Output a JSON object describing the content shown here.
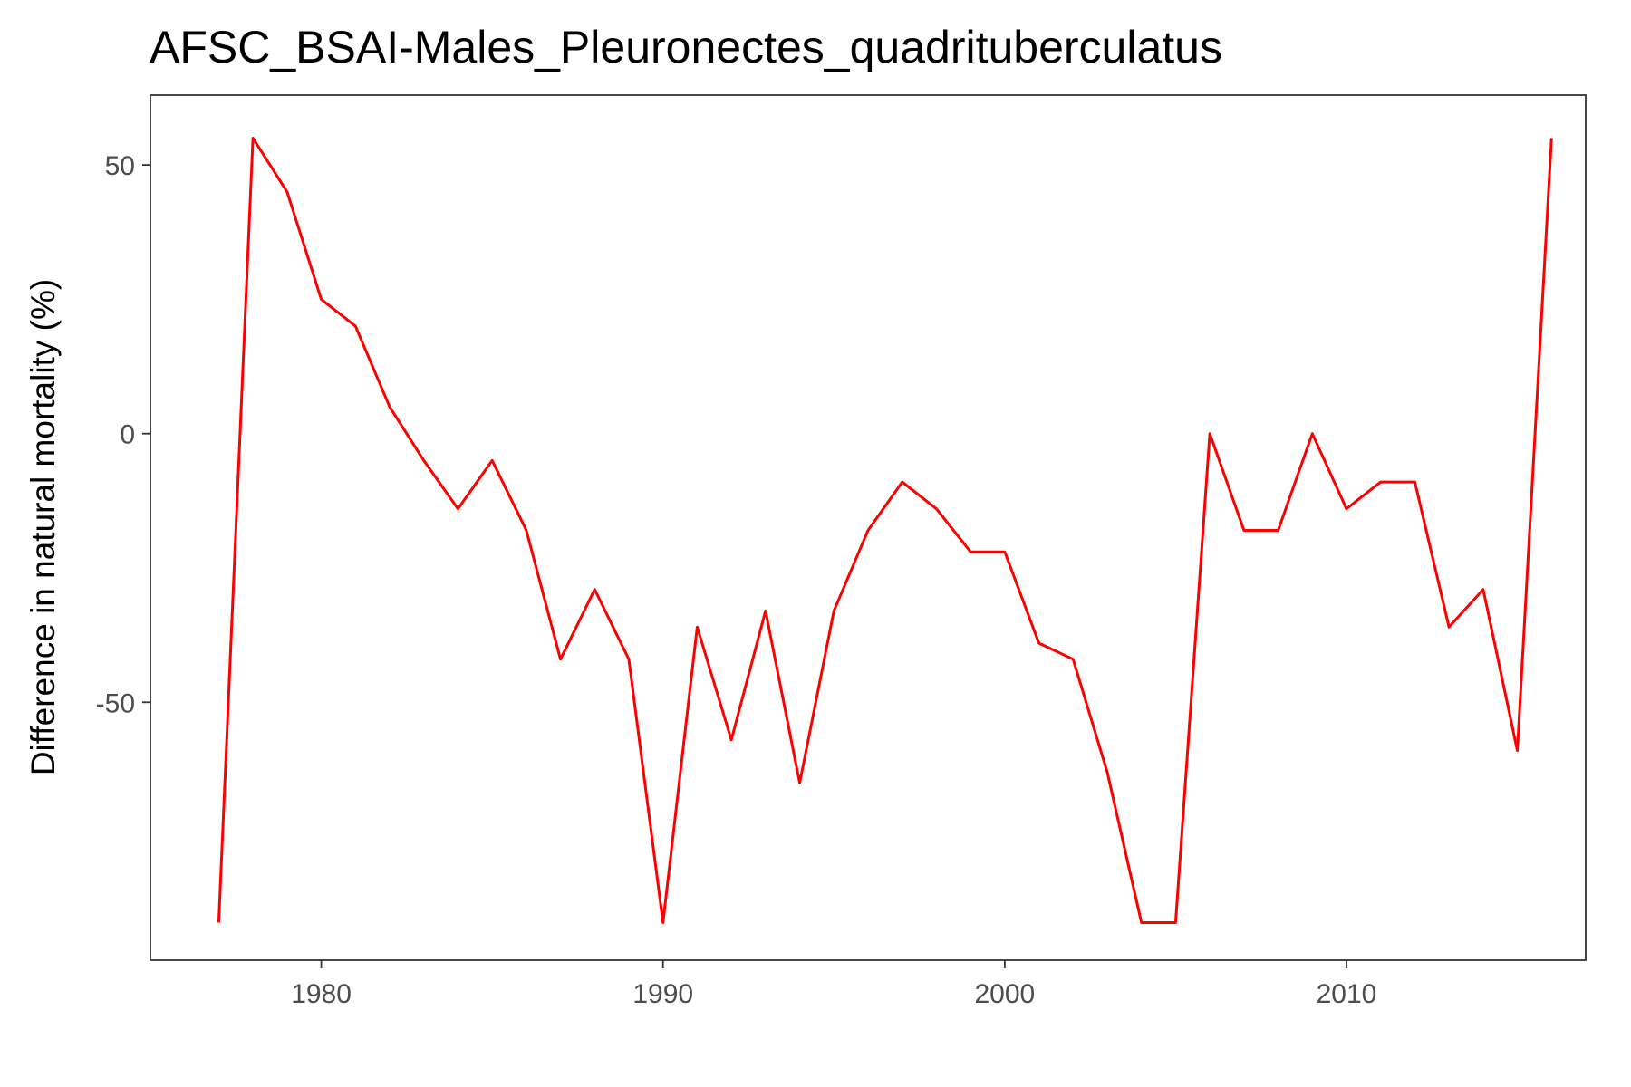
{
  "chart_data": {
    "type": "line",
    "title": "AFSC_BSAI-Males_Pleuronectes_quadrituberculatus",
    "xlabel": "",
    "ylabel": "Difference in natural mortality (%)",
    "xlim": [
      1975,
      2017
    ],
    "ylim": [
      -98,
      63
    ],
    "x_ticks": [
      1980,
      1990,
      2000,
      2010
    ],
    "y_ticks": [
      50,
      0,
      -50
    ],
    "y_tick_labels": [
      "50",
      "0",
      "-50"
    ],
    "grid": false,
    "series": [
      {
        "color": "#ff0000",
        "x": [
          1977,
          1978,
          1979,
          1980,
          1981,
          1982,
          1983,
          1984,
          1985,
          1986,
          1987,
          1988,
          1989,
          1990,
          1991,
          1992,
          1993,
          1994,
          1995,
          1996,
          1997,
          1998,
          1999,
          2000,
          2001,
          2002,
          2003,
          2004,
          2005,
          2006,
          2007,
          2008,
          2009,
          2010,
          2011,
          2012,
          2013,
          2014,
          2015,
          2016
        ],
        "y": [
          -91,
          55,
          45,
          25,
          20,
          5,
          -5,
          -14,
          -5,
          -18,
          -42,
          -29,
          -42,
          -91,
          -36,
          -57,
          -33,
          -65,
          -33,
          -18,
          -9,
          -14,
          -22,
          -22,
          -39,
          -42,
          -63,
          -91,
          -91,
          0,
          -18,
          -18,
          0,
          -14,
          -9,
          -9,
          -36,
          -29,
          -59,
          55
        ]
      }
    ]
  }
}
